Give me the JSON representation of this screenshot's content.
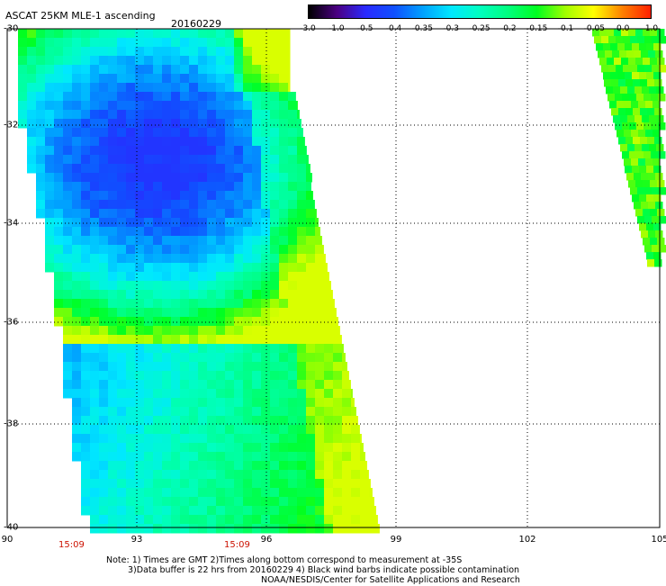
{
  "header": {
    "title": "ASCAT 25KM MLE-1 ascending",
    "date": "20160229"
  },
  "colorbar": {
    "ticks": [
      "-3.0",
      "-1.0",
      "-0.5",
      "-0.4",
      "-0.35",
      "-0.3",
      "-0.25",
      "-0.2",
      "-0.15",
      "-0.1",
      "-0.05",
      "0.0",
      "1.0"
    ],
    "colors": [
      "#000000",
      "#4b0082",
      "#2a2aff",
      "#1050ff",
      "#00a0ff",
      "#00e8ff",
      "#00ffc0",
      "#00ff7f",
      "#00ff20",
      "#a0ff00",
      "#ffff00",
      "#ff8000",
      "#ff2000"
    ]
  },
  "axes": {
    "x_ticks": [
      "90",
      "93",
      "96",
      "99",
      "102",
      "105"
    ],
    "y_ticks": [
      "-30",
      "-32",
      "-34",
      "-36",
      "-38",
      "-40"
    ]
  },
  "times": [
    "15:09",
    "15:09"
  ],
  "notes": {
    "line1": "Note: 1) Times are GMT 2)Times along bottom correspond to measurement at -35S",
    "line2": "3)Data buffer is 22 hrs from 20160229 4) Black wind barbs indicate possible contamination",
    "line3": "NOAA/NESDIS/Center for Satellite Applications and Research"
  }
}
